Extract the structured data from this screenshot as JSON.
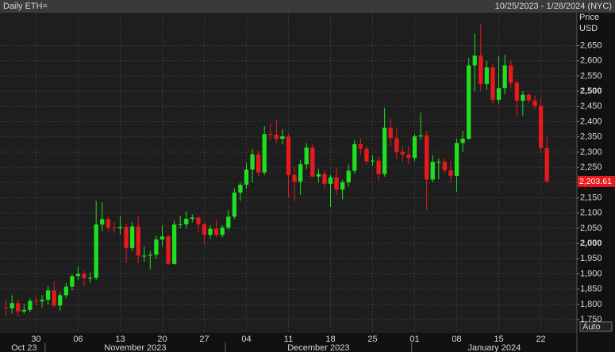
{
  "chart_data": {
    "type": "candlestick",
    "title": "Daily ETH=",
    "subtitle": "10/25/2023 - 1/28/2024 (NYC)",
    "y_axis_label": "Price",
    "y_axis_unit": "USD",
    "button": "Auto",
    "up_color": "#1fe01f",
    "down_color": "#e8191c",
    "grid": true,
    "xlim": [
      "2023-10-24",
      "2024-01-28"
    ],
    "ylim": [
      1706,
      2758
    ],
    "last_label": "2,203.61",
    "month_labels": [
      "Oct 23",
      "November 2023",
      "December 2023",
      "January 2024"
    ],
    "xticks": [
      {
        "value": "2023-10-30",
        "label": "30"
      },
      {
        "value": "2023-11-06",
        "label": "06"
      },
      {
        "value": "2023-11-13",
        "label": "13"
      },
      {
        "value": "2023-11-20",
        "label": "20"
      },
      {
        "value": "2023-11-27",
        "label": "27"
      },
      {
        "value": "2023-12-04",
        "label": "04"
      },
      {
        "value": "2023-12-11",
        "label": "11"
      },
      {
        "value": "2023-12-18",
        "label": "18"
      },
      {
        "value": "2023-12-25",
        "label": "25"
      },
      {
        "value": "2024-01-01",
        "label": "01"
      },
      {
        "value": "2024-01-08",
        "label": "08"
      },
      {
        "value": "2024-01-15",
        "label": "15"
      },
      {
        "value": "2024-01-22",
        "label": "22"
      }
    ],
    "yticks": [
      {
        "value": 1750,
        "label": "1,750"
      },
      {
        "value": 1800,
        "label": "1,800"
      },
      {
        "value": 1850,
        "label": "1,850"
      },
      {
        "value": 1900,
        "label": "1,900"
      },
      {
        "value": 1950,
        "label": "1,950"
      },
      {
        "value": 2000,
        "label": "2,000"
      },
      {
        "value": 2050,
        "label": "2,050"
      },
      {
        "value": 2100,
        "label": "2,100"
      },
      {
        "value": 2150,
        "label": "2,150"
      },
      {
        "value": 2200,
        "label": "2,200"
      },
      {
        "value": 2250,
        "label": "2,250"
      },
      {
        "value": 2300,
        "label": "2,300"
      },
      {
        "value": 2350,
        "label": "2,350"
      },
      {
        "value": 2400,
        "label": "2,400"
      },
      {
        "value": 2450,
        "label": "2,450"
      },
      {
        "value": 2500,
        "label": "2,500"
      },
      {
        "value": 2550,
        "label": "2,550"
      },
      {
        "value": 2600,
        "label": "2,600"
      },
      {
        "value": 2650,
        "label": "2,650"
      }
    ],
    "x": [
      "2023-10-25",
      "2023-10-26",
      "2023-10-27",
      "2023-10-28",
      "2023-10-29",
      "2023-10-30",
      "2023-10-31",
      "2023-11-01",
      "2023-11-02",
      "2023-11-03",
      "2023-11-04",
      "2023-11-05",
      "2023-11-06",
      "2023-11-07",
      "2023-11-08",
      "2023-11-09",
      "2023-11-10",
      "2023-11-11",
      "2023-11-12",
      "2023-11-13",
      "2023-11-14",
      "2023-11-15",
      "2023-11-16",
      "2023-11-17",
      "2023-11-18",
      "2023-11-19",
      "2023-11-20",
      "2023-11-21",
      "2023-11-22",
      "2023-11-23",
      "2023-11-24",
      "2023-11-25",
      "2023-11-26",
      "2023-11-27",
      "2023-11-28",
      "2023-11-29",
      "2023-11-30",
      "2023-12-01",
      "2023-12-02",
      "2023-12-03",
      "2023-12-04",
      "2023-12-05",
      "2023-12-06",
      "2023-12-07",
      "2023-12-08",
      "2023-12-09",
      "2023-12-10",
      "2023-12-11",
      "2023-12-12",
      "2023-12-13",
      "2023-12-14",
      "2023-12-15",
      "2023-12-16",
      "2023-12-17",
      "2023-12-18",
      "2023-12-19",
      "2023-12-20",
      "2023-12-21",
      "2023-12-22",
      "2023-12-23",
      "2023-12-24",
      "2023-12-25",
      "2023-12-26",
      "2023-12-27",
      "2023-12-28",
      "2023-12-29",
      "2023-12-30",
      "2023-12-31",
      "2024-01-01",
      "2024-01-02",
      "2024-01-03",
      "2024-01-04",
      "2024-01-05",
      "2024-01-06",
      "2024-01-07",
      "2024-01-08",
      "2024-01-09",
      "2024-01-10",
      "2024-01-11",
      "2024-01-12",
      "2024-01-13",
      "2024-01-14",
      "2024-01-15",
      "2024-01-16",
      "2024-01-17",
      "2024-01-18",
      "2024-01-19",
      "2024-01-20",
      "2024-01-21",
      "2024-01-22",
      "2024-01-23"
    ],
    "open": [
      1790,
      1787,
      1804,
      1777,
      1782,
      1811,
      1810,
      1815,
      1846,
      1796,
      1830,
      1858,
      1893,
      1900,
      1886,
      1887,
      2062,
      2080,
      2052,
      2050,
      2054,
      1985,
      2056,
      1960,
      1960,
      1963,
      2013,
      2023,
      1933,
      2062,
      2063,
      2081,
      2085,
      2063,
      2028,
      2048,
      2028,
      2052,
      2088,
      2167,
      2193,
      2243,
      2293,
      2233,
      2359,
      2357,
      2344,
      2352,
      2225,
      2203,
      2260,
      2315,
      2220,
      2228,
      2196,
      2217,
      2177,
      2201,
      2239,
      2326,
      2311,
      2270,
      2272,
      2228,
      2380,
      2346,
      2300,
      2292,
      2281,
      2352,
      2355,
      2210,
      2268,
      2268,
      2240,
      2222,
      2330,
      2344,
      2585,
      2617,
      2524,
      2578,
      2472,
      2510,
      2585,
      2528,
      2469,
      2488,
      2470,
      2452,
      2313
    ],
    "high": [
      1815,
      1830,
      1815,
      1800,
      1820,
      1825,
      1830,
      1860,
      1875,
      1840,
      1870,
      1900,
      1925,
      1910,
      1905,
      2140,
      2135,
      2090,
      2070,
      2090,
      2065,
      2070,
      2090,
      1990,
      1975,
      2025,
      2060,
      2030,
      2075,
      2090,
      2105,
      2095,
      2090,
      2070,
      2060,
      2080,
      2060,
      2110,
      2180,
      2200,
      2265,
      2310,
      2305,
      2385,
      2395,
      2405,
      2375,
      2360,
      2250,
      2275,
      2330,
      2325,
      2245,
      2240,
      2225,
      2250,
      2210,
      2260,
      2340,
      2345,
      2320,
      2290,
      2285,
      2445,
      2410,
      2380,
      2320,
      2320,
      2360,
      2430,
      2370,
      2290,
      2280,
      2280,
      2270,
      2345,
      2370,
      2610,
      2690,
      2721,
      2600,
      2590,
      2615,
      2620,
      2600,
      2540,
      2500,
      2495,
      2485,
      2480,
      2350
    ],
    "low": [
      1760,
      1770,
      1760,
      1770,
      1775,
      1795,
      1790,
      1800,
      1790,
      1780,
      1820,
      1845,
      1880,
      1860,
      1870,
      1880,
      2040,
      2040,
      2035,
      2030,
      1935,
      1975,
      1935,
      1940,
      1915,
      1950,
      1990,
      1930,
      1930,
      2050,
      2050,
      2070,
      2035,
      2000,
      2015,
      2020,
      2020,
      2045,
      2080,
      2140,
      2180,
      2200,
      2220,
      2225,
      2340,
      2330,
      2325,
      2150,
      2140,
      2160,
      2245,
      2215,
      2200,
      2180,
      2120,
      2160,
      2145,
      2185,
      2230,
      2290,
      2260,
      2255,
      2205,
      2220,
      2320,
      2280,
      2270,
      2260,
      2270,
      2340,
      2110,
      2200,
      2210,
      2230,
      2200,
      2170,
      2300,
      2340,
      2500,
      2500,
      2505,
      2460,
      2460,
      2490,
      2510,
      2420,
      2420,
      2460,
      2440,
      2300,
      2198
    ],
    "close": [
      1787,
      1804,
      1777,
      1782,
      1811,
      1810,
      1815,
      1846,
      1796,
      1830,
      1858,
      1893,
      1900,
      1886,
      1887,
      2062,
      2080,
      2052,
      2050,
      2054,
      1985,
      2056,
      1960,
      1960,
      1963,
      2013,
      2023,
      1933,
      2062,
      2063,
      2081,
      2085,
      2063,
      2028,
      2048,
      2028,
      2052,
      2088,
      2167,
      2193,
      2243,
      2293,
      2233,
      2359,
      2357,
      2344,
      2352,
      2225,
      2203,
      2260,
      2315,
      2220,
      2228,
      2196,
      2217,
      2177,
      2201,
      2239,
      2326,
      2311,
      2270,
      2272,
      2228,
      2380,
      2346,
      2300,
      2292,
      2281,
      2352,
      2355,
      2210,
      2268,
      2268,
      2240,
      2222,
      2330,
      2344,
      2585,
      2617,
      2524,
      2578,
      2472,
      2510,
      2585,
      2528,
      2469,
      2488,
      2470,
      2452,
      2313,
      2203.61
    ]
  }
}
